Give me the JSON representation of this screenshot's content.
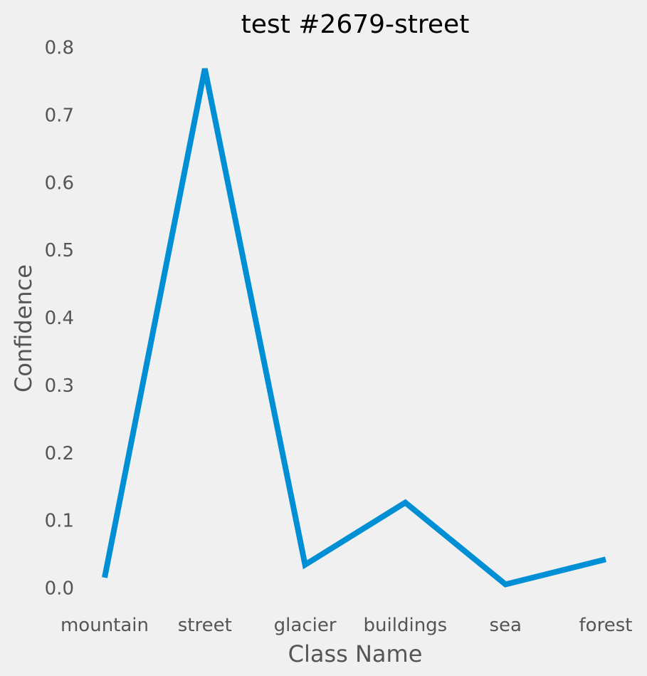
{
  "chart_data": {
    "type": "line",
    "title": "test #2679-street",
    "xlabel": "Class Name",
    "ylabel": "Confidence",
    "categories": [
      "mountain",
      "street",
      "glacier",
      "buildings",
      "sea",
      "forest"
    ],
    "values": [
      0.017,
      0.77,
      0.036,
      0.128,
      0.007,
      0.044
    ],
    "ylim": [
      0.0,
      0.8
    ],
    "yticks": [
      "0.0",
      "0.1",
      "0.2",
      "0.3",
      "0.4",
      "0.5",
      "0.6",
      "0.7",
      "0.8"
    ],
    "grid": false,
    "line_color": "#008fd5",
    "background_color": "#f0f0f0"
  }
}
